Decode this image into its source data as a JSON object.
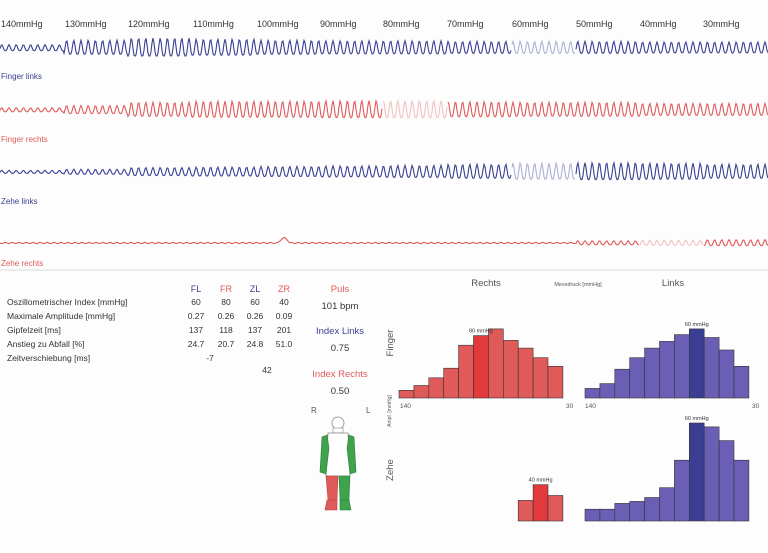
{
  "pressure_labels": [
    "140mmHg",
    "130mmHg",
    "120mmHg",
    "110mmHg",
    "100mmHg",
    "90mmHg",
    "80mmHg",
    "70mmHg",
    "60mmHg",
    "50mmHg",
    "40mmHg",
    "30mmHg"
  ],
  "traces": [
    {
      "label": "Finger links",
      "color": "#3a3f93",
      "light_color": "#aeb1d6"
    },
    {
      "label": "Finger rechts",
      "color": "#e05a5a",
      "light_color": "#f3c1c1"
    },
    {
      "label": "Zehe links",
      "color": "#3a3f93",
      "light_color": "#aeb1d6"
    },
    {
      "label": "Zehe rechts",
      "color": "#e05a5a",
      "light_color": "#f3c1c1"
    }
  ],
  "table": {
    "headers": [
      "FL",
      "FR",
      "ZL",
      "ZR"
    ],
    "header_colors": [
      "#3a3f93",
      "#e05a5a",
      "#3a3f93",
      "#e05a5a"
    ],
    "rows": [
      {
        "label": "Oszillometrischer Index [mmHg]",
        "values": [
          "60",
          "80",
          "60",
          "40"
        ]
      },
      {
        "label": "Maximale Amplitude [mmHg]",
        "values": [
          "0.27",
          "0.26",
          "0.26",
          "0.09"
        ]
      },
      {
        "label": "Gipfelzeit [ms]",
        "values": [
          "137",
          "118",
          "137",
          "201"
        ]
      },
      {
        "label": "Anstieg zu Abfall [%]",
        "values": [
          "24.7",
          "20.7",
          "24.8",
          "51.0"
        ]
      },
      {
        "label": "Zeitverschiebung [ms]",
        "values": [
          "-7"
        ]
      }
    ],
    "extra_value": "42"
  },
  "stats": {
    "puls_label": "Puls",
    "puls_value": "101 bpm",
    "index_links_label": "Index Links",
    "index_links_value": "0.75",
    "index_rechts_label": "Index Rechts",
    "index_rechts_value": "0.50"
  },
  "body_figure": {
    "left_label": "R",
    "right_label": "L"
  },
  "histograms": {
    "col_rechts": "Rechts",
    "col_links": "Links",
    "messdruck": "Messdruck [mmHg]",
    "row_finger": "Finger",
    "row_zehe": "Zehe",
    "y_axis_label": "Ampl. [mmHg]",
    "axis_left": "140",
    "axis_right": "30"
  },
  "chart_data": [
    {
      "type": "bar",
      "name": "Finger rechts",
      "highlight_label": "80 mmHg",
      "highlight_index": 5,
      "color": "#e05a5a",
      "highlight_color": "#e23a3a",
      "values": [
        0.08,
        0.13,
        0.21,
        0.31,
        0.55,
        0.65,
        0.72,
        0.6,
        0.52,
        0.42,
        0.33
      ]
    },
    {
      "type": "bar",
      "name": "Finger links",
      "highlight_label": "60 mmHg",
      "highlight_index": 7,
      "color": "#6a5fb5",
      "highlight_color": "#3a3f93",
      "values": [
        0.1,
        0.15,
        0.3,
        0.42,
        0.52,
        0.59,
        0.66,
        0.72,
        0.63,
        0.5,
        0.33
      ]
    },
    {
      "type": "bar",
      "name": "Zehe rechts",
      "highlight_label": "40 mmHg",
      "highlight_index": 9,
      "color": "#e05a5a",
      "highlight_color": "#e23a3a",
      "values": [
        0,
        0,
        0,
        0,
        0,
        0,
        0,
        0,
        0.21,
        0.37,
        0.26
      ]
    },
    {
      "type": "bar",
      "name": "Zehe links",
      "highlight_label": "60 mmHg",
      "highlight_index": 7,
      "color": "#6a5fb5",
      "highlight_color": "#3a3f93",
      "values": [
        0.12,
        0.12,
        0.18,
        0.2,
        0.24,
        0.34,
        0.62,
        1.0,
        0.96,
        0.82,
        0.62
      ]
    }
  ]
}
